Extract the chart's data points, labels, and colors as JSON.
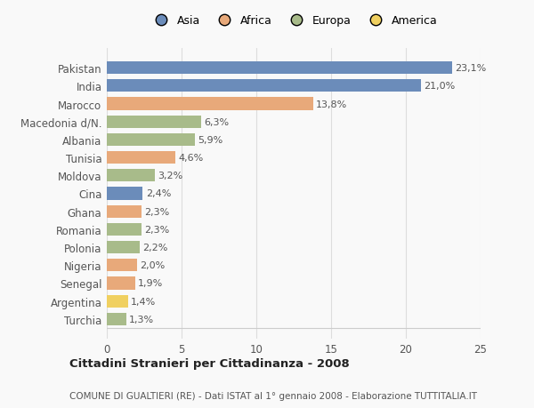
{
  "categories": [
    "Pakistan",
    "India",
    "Marocco",
    "Macedonia d/N.",
    "Albania",
    "Tunisia",
    "Moldova",
    "Cina",
    "Ghana",
    "Romania",
    "Polonia",
    "Nigeria",
    "Senegal",
    "Argentina",
    "Turchia"
  ],
  "values": [
    23.1,
    21.0,
    13.8,
    6.3,
    5.9,
    4.6,
    3.2,
    2.4,
    2.3,
    2.3,
    2.2,
    2.0,
    1.9,
    1.4,
    1.3
  ],
  "labels": [
    "23,1%",
    "21,0%",
    "13,8%",
    "6,3%",
    "5,9%",
    "4,6%",
    "3,2%",
    "2,4%",
    "2,3%",
    "2,3%",
    "2,2%",
    "2,0%",
    "1,9%",
    "1,4%",
    "1,3%"
  ],
  "colors": [
    "#6b8cba",
    "#6b8cba",
    "#e8a97a",
    "#a8bb8a",
    "#a8bb8a",
    "#e8a97a",
    "#a8bb8a",
    "#6b8cba",
    "#e8a97a",
    "#a8bb8a",
    "#a8bb8a",
    "#e8a97a",
    "#e8a97a",
    "#f0d060",
    "#a8bb8a"
  ],
  "legend_labels": [
    "Asia",
    "Africa",
    "Europa",
    "America"
  ],
  "legend_colors": [
    "#6b8cba",
    "#e8a97a",
    "#a8bb8a",
    "#f0d060"
  ],
  "title": "Cittadini Stranieri per Cittadinanza - 2008",
  "subtitle": "COMUNE DI GUALTIERI (RE) - Dati ISTAT al 1° gennaio 2008 - Elaborazione TUTTITALIA.IT",
  "xlim": [
    0,
    25
  ],
  "xticks": [
    0,
    5,
    10,
    15,
    20,
    25
  ],
  "background_color": "#f9f9f9",
  "grid_color": "#dddddd"
}
